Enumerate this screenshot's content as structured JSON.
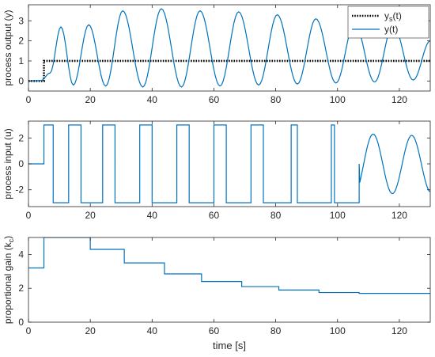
{
  "chart_data": [
    {
      "type": "line",
      "ylabel": "process output (y)",
      "xlim": [
        0,
        130
      ],
      "ylim": [
        -0.5,
        3.8
      ],
      "xticks": [
        0,
        20,
        40,
        60,
        80,
        100,
        120
      ],
      "yticks": [
        0,
        1,
        2,
        3
      ],
      "legend_placement": "top-right",
      "series": [
        {
          "name": "y_s(t)",
          "legend_main": "y",
          "legend_sub": "s",
          "legend_tail": "(t)",
          "color": "#000000",
          "style": "dotted",
          "x": [
            0,
            5,
            5,
            130
          ],
          "y": [
            0,
            0,
            1,
            1
          ]
        },
        {
          "name": "y(t)",
          "legend_main": "y(t)",
          "color": "#0072BD",
          "style": "solid",
          "peaks": [
            [
              0,
              0
            ],
            [
              4,
              0.02
            ],
            [
              7,
              0.4
            ],
            [
              10.5,
              2.7
            ],
            [
              14.5,
              -0.2
            ],
            [
              19.5,
              2.8
            ],
            [
              25,
              -0.25
            ],
            [
              30.5,
              3.5
            ],
            [
              37,
              -0.3
            ],
            [
              43,
              3.6
            ],
            [
              49.5,
              -0.3
            ],
            [
              55.5,
              3.5
            ],
            [
              62,
              -0.25
            ],
            [
              68,
              3.45
            ],
            [
              74.5,
              -0.2
            ],
            [
              80.5,
              3.3
            ],
            [
              87,
              -0.15
            ],
            [
              93,
              3.1
            ],
            [
              99.5,
              -0.1
            ],
            [
              105.5,
              2.9
            ],
            [
              112,
              -0.05
            ],
            [
              118,
              2.8
            ],
            [
              124.5,
              0.05
            ],
            [
              130,
              2.0
            ]
          ]
        }
      ]
    },
    {
      "type": "line",
      "ylabel": "process input (u)",
      "xlim": [
        0,
        130
      ],
      "ylim": [
        -3.3,
        3.3
      ],
      "xticks": [
        0,
        20,
        40,
        60,
        80,
        100,
        120
      ],
      "yticks": [
        -2,
        0,
        2
      ],
      "series": [
        {
          "name": "",
          "color": "#0072BD",
          "style": "solid",
          "pts": [
            [
              0,
              0
            ],
            [
              5,
              0
            ],
            [
              5,
              3
            ],
            [
              8,
              3
            ],
            [
              8,
              -3
            ],
            [
              13,
              -3
            ],
            [
              13,
              3
            ],
            [
              17,
              3
            ],
            [
              17,
              -3
            ],
            [
              24,
              -3
            ],
            [
              24,
              3
            ],
            [
              28,
              3
            ],
            [
              28,
              -3
            ],
            [
              36,
              -3
            ],
            [
              36,
              3
            ],
            [
              40,
              3
            ],
            [
              40,
              -3
            ],
            [
              48,
              -3
            ],
            [
              48,
              3
            ],
            [
              52,
              3
            ],
            [
              52,
              -3
            ],
            [
              60,
              -3
            ],
            [
              60,
              3
            ],
            [
              64,
              3
            ],
            [
              64,
              -3
            ],
            [
              72,
              -3
            ],
            [
              72,
              3
            ],
            [
              76,
              3
            ],
            [
              76,
              -3
            ],
            [
              85,
              -3
            ],
            [
              85,
              3
            ],
            [
              87,
              3
            ],
            [
              87,
              -3
            ],
            [
              98,
              -3
            ],
            [
              98,
              3
            ],
            [
              99,
              3
            ],
            [
              99,
              -3
            ],
            [
              107,
              -3
            ],
            [
              107,
              0
            ]
          ],
          "osc_start": 74,
          "osc_period": 12.5,
          "osc_peaks": [
            [
              74,
              3.0
            ],
            [
              86.5,
              2.8
            ],
            [
              99,
              2.5
            ],
            [
              111.5,
              2.3
            ],
            [
              124,
              2.2
            ]
          ]
        }
      ]
    },
    {
      "type": "line",
      "ylabel": "proportional gain (k",
      "ylabel_sub": "c",
      "ylabel_tail": ")",
      "xlabel": "time [s]",
      "xlim": [
        0,
        130
      ],
      "ylim": [
        0,
        5
      ],
      "xticks": [
        0,
        20,
        40,
        60,
        80,
        100,
        120
      ],
      "yticks": [
        0,
        2,
        4
      ],
      "series": [
        {
          "name": "",
          "color": "#0072BD",
          "style": "solid",
          "x": [
            0,
            5,
            5,
            20,
            20,
            31,
            31,
            44,
            44,
            56,
            56,
            69,
            69,
            81,
            81,
            94,
            94,
            107,
            107,
            130
          ],
          "y": [
            3.2,
            3.2,
            5,
            5,
            4.3,
            4.3,
            3.5,
            3.5,
            2.85,
            2.85,
            2.4,
            2.4,
            2.1,
            2.1,
            1.9,
            1.9,
            1.75,
            1.75,
            1.7,
            1.7
          ]
        }
      ]
    }
  ]
}
